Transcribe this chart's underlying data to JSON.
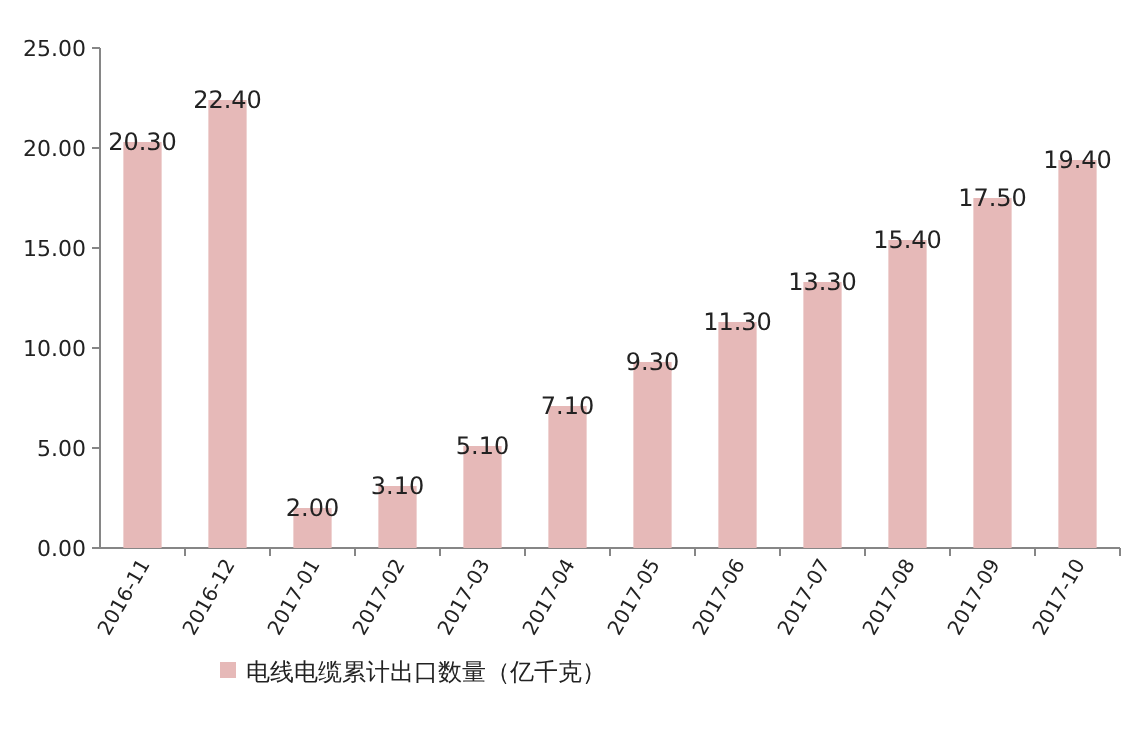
{
  "chart_data": {
    "type": "bar",
    "categories": [
      "2016-11",
      "2016-12",
      "2017-01",
      "2017-02",
      "2017-03",
      "2017-04",
      "2017-05",
      "2017-06",
      "2017-07",
      "2017-08",
      "2017-09",
      "2017-10"
    ],
    "series": [
      {
        "name": "电线电缆累计出口数量（亿千克）",
        "color": "#e6b9b8",
        "values": [
          20.3,
          22.4,
          2.0,
          3.1,
          5.1,
          7.1,
          9.3,
          11.3,
          13.3,
          15.4,
          17.5,
          19.4
        ],
        "value_labels": [
          "20.30",
          "22.40",
          "2.00",
          "3.10",
          "5.10",
          "7.10",
          "9.30",
          "11.30",
          "13.30",
          "15.40",
          "17.50",
          "19.40"
        ]
      }
    ],
    "ylim": [
      0,
      25
    ],
    "yticks": [
      {
        "value": 0,
        "label": "0.00"
      },
      {
        "value": 5,
        "label": "5.00"
      },
      {
        "value": 10,
        "label": "10.00"
      },
      {
        "value": 15,
        "label": "15.00"
      },
      {
        "value": 20,
        "label": "20.00"
      },
      {
        "value": 25,
        "label": "25.00"
      }
    ],
    "grid": false,
    "legend": "bottom"
  }
}
